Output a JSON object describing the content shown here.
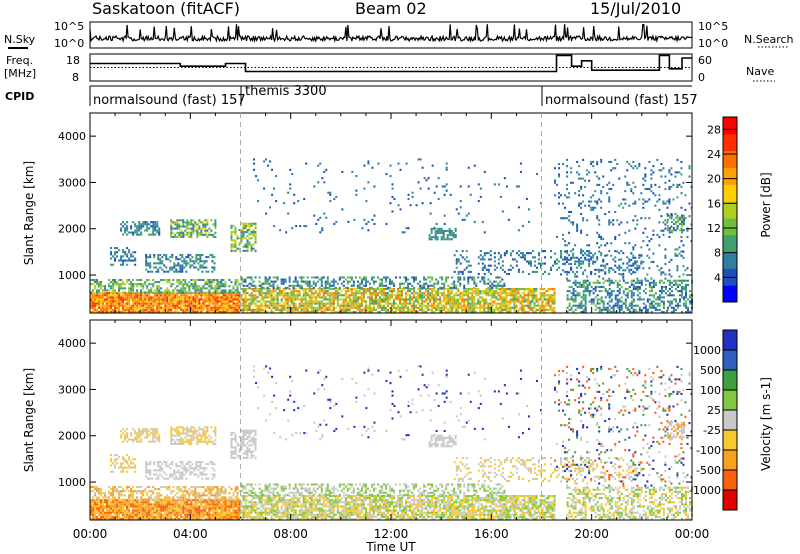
{
  "header": {
    "station": "Saskatoon (fitACF)",
    "beam": "Beam 02",
    "date": "15/Jul/2010"
  },
  "labels": {
    "nsky": "N.Sky",
    "nsearch": "N.Search",
    "freq_line1": "Freq.",
    "freq_line2": "[MHz]",
    "nave": "Nave",
    "cpid": "CPID",
    "nsky_tick_hi": "10^5",
    "nsky_tick_lo": "10^0",
    "nsearch_tick_hi": "10^5",
    "nsearch_tick_lo": "10^0",
    "freq_tick_hi": "18",
    "freq_tick_lo": "8",
    "nave_tick_hi": "60",
    "nave_tick_lo": "0"
  },
  "cpid_segments": [
    {
      "label": "normalsound (fast) 157"
    },
    {
      "label": "themis 3300"
    },
    {
      "label": "normalsound (fast) 157"
    }
  ],
  "chart_data": [
    {
      "type": "heatmap",
      "title": "",
      "panel": "power",
      "xlabel": "",
      "ylabel": "Slant Range [km]",
      "xlim": [
        0,
        24
      ],
      "ylim": [
        180,
        4500
      ],
      "x_ticks": [
        "00:00",
        "04:00",
        "08:00",
        "12:00",
        "16:00",
        "20:00",
        "00:00"
      ],
      "y_ticks": [
        1000,
        2000,
        3000,
        4000
      ],
      "colorbar": {
        "label": "Power [dB]",
        "ticks": [
          4,
          8,
          12,
          16,
          20,
          24,
          28
        ],
        "range": [
          0,
          30
        ],
        "colors": [
          "#0000ff",
          "#1f4fbf",
          "#2f7f9f",
          "#3f9f6f",
          "#6fbf3f",
          "#afcf1f",
          "#ffcf00",
          "#ff9f00",
          "#ff6f00",
          "#ff2f00",
          "#ff0000"
        ]
      },
      "cpid_change_times": [
        6.0,
        18.0
      ],
      "grid": false
    },
    {
      "type": "heatmap",
      "title": "",
      "panel": "velocity",
      "xlabel": "Time UT",
      "ylabel": "Slant Range [km]",
      "xlim": [
        0,
        24
      ],
      "ylim": [
        180,
        4500
      ],
      "x_ticks": [
        "00:00",
        "04:00",
        "08:00",
        "12:00",
        "16:00",
        "20:00",
        "00:00"
      ],
      "y_ticks": [
        1000,
        2000,
        3000,
        4000
      ],
      "colorbar": {
        "label": "Velocity [m s-1]",
        "ticks": [
          "1000",
          "500",
          "100",
          "25",
          "-25",
          "-100",
          "-500",
          "-1000"
        ],
        "colors": [
          "#2030c0",
          "#3060c0",
          "#40a040",
          "#80c840",
          "#c8c8c8",
          "#f8c830",
          "#f8a020",
          "#f86010",
          "#e00000"
        ]
      },
      "cpid_change_times": [
        6.0,
        18.0
      ],
      "grid": false
    },
    {
      "type": "line",
      "panel": "frequency-nave",
      "title": "",
      "series": [
        {
          "name": "Freq.",
          "x": [
            0,
            3.6,
            3.6,
            5.4,
            5.4,
            6.2,
            6.2,
            18.6,
            18.6,
            19.2,
            19.2,
            19.6,
            19.6,
            20.0,
            20.0,
            22.7,
            22.7,
            23.1,
            23.1,
            23.6,
            23.6,
            24
          ],
          "y": [
            14.5,
            14.5,
            13.5,
            13.5,
            14.5,
            14.5,
            11.5,
            11.5,
            17.5,
            17.5,
            13.5,
            13.5,
            15.5,
            15.5,
            12.0,
            12.0,
            17.5,
            17.5,
            12.5,
            12.5,
            16.5,
            16.5
          ]
        },
        {
          "name": "Nave",
          "x": [
            0,
            24
          ],
          "y": [
            30,
            30
          ]
        }
      ],
      "ylim_freq": [
        8,
        18
      ],
      "ylim_nave": [
        0,
        60
      ]
    }
  ]
}
